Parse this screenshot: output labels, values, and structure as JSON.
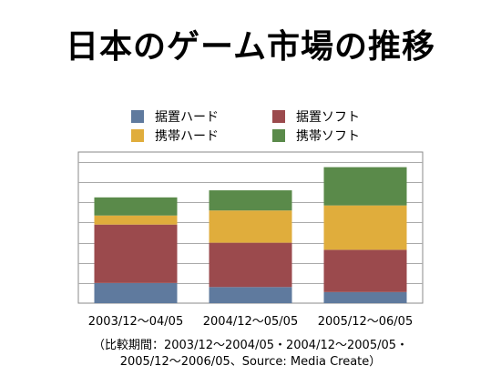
{
  "page": {
    "title": "日本のゲーム市場の推移",
    "note_line1": "（比較期間：2003/12〜2004/05・2004/12〜2005/05・",
    "note_line2": "2005/12〜2006/05、Source: Media Create）"
  },
  "colors": {
    "portable_software": "#5a8a4a",
    "portable_hardware": "#e0ad3c",
    "console_software": "#9b4a4d",
    "console_hardware": "#5f7a9e",
    "grid": "#aaaaaa",
    "plot_border": "#888888"
  },
  "chart_data": {
    "type": "bar",
    "stacked": true,
    "title": "日本のゲーム市場の推移",
    "xlabel": "",
    "ylabel": "",
    "categories": [
      "2003/12〜04/05",
      "2004/12〜05/05",
      "2005/12〜06/05"
    ],
    "series": [
      {
        "name": "据置ハード",
        "values": [
          10,
          8,
          5.5
        ]
      },
      {
        "name": "据置ソフト",
        "values": [
          29,
          22,
          21
        ]
      },
      {
        "name": "携帯ハード",
        "values": [
          4.5,
          16,
          22
        ]
      },
      {
        "name": "携帯ソフト",
        "values": [
          9,
          10,
          19
        ]
      }
    ],
    "ylim": [
      0,
      75
    ],
    "grid": true,
    "legend_position": "top"
  }
}
